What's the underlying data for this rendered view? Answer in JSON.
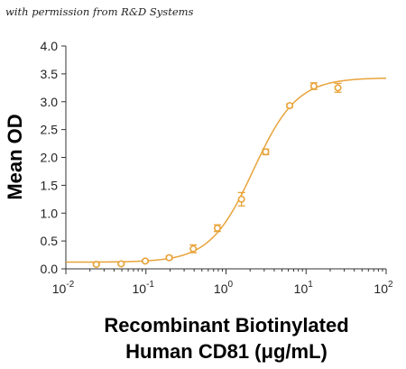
{
  "credit": "with permission from R&D Systems",
  "chart_data": {
    "type": "scatter",
    "xscale": "log",
    "xlim": [
      0.01,
      100
    ],
    "ylim": [
      0,
      4.0
    ],
    "xticks": [
      {
        "value": 0.01,
        "base": "10",
        "exp": "-2"
      },
      {
        "value": 0.1,
        "base": "10",
        "exp": "-1"
      },
      {
        "value": 1,
        "base": "10",
        "exp": "0"
      },
      {
        "value": 10,
        "base": "10",
        "exp": "1"
      },
      {
        "value": 100,
        "base": "10",
        "exp": "2"
      }
    ],
    "yticks": [
      "0.0",
      "0.5",
      "1.0",
      "1.5",
      "2.0",
      "2.5",
      "3.0",
      "3.5",
      "4.0"
    ],
    "ylabel": "Mean OD",
    "xlabel_line1": "Recombinant Biotinylated",
    "xlabel_line2": "Human CD81 (μg/mL)",
    "color": "#E8A33A",
    "points": [
      {
        "x": 0.024,
        "y": 0.08,
        "err": 0.02
      },
      {
        "x": 0.049,
        "y": 0.09,
        "err": 0.02
      },
      {
        "x": 0.098,
        "y": 0.14,
        "err": 0.02
      },
      {
        "x": 0.195,
        "y": 0.2,
        "err": 0.03
      },
      {
        "x": 0.39,
        "y": 0.36,
        "err": 0.07
      },
      {
        "x": 0.78,
        "y": 0.73,
        "err": 0.06
      },
      {
        "x": 1.56,
        "y": 1.25,
        "err": 0.12
      },
      {
        "x": 3.13,
        "y": 2.1,
        "err": 0.05
      },
      {
        "x": 6.25,
        "y": 2.93,
        "err": 0.03
      },
      {
        "x": 12.5,
        "y": 3.28,
        "err": 0.06
      },
      {
        "x": 25,
        "y": 3.25,
        "err": 0.08
      }
    ],
    "fit": {
      "bottom": 0.12,
      "top": 3.43,
      "ec50": 2.2,
      "hill": 1.6
    },
    "grid": false
  }
}
